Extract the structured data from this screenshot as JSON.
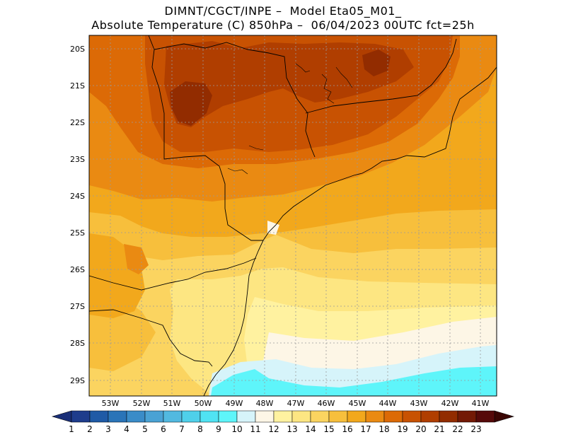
{
  "header": {
    "line1": "DIMNT/CGCT/INPE –  Model Eta05_M01_",
    "line2": "Absolute Temperature (C) 850hPa –  06/04/2023 00UTC fct=25h"
  },
  "axes": {
    "lat_labels": [
      "20S",
      "21S",
      "22S",
      "23S",
      "24S",
      "25S",
      "26S",
      "27S",
      "28S",
      "29S"
    ],
    "lon_labels": [
      "53W",
      "52W",
      "51W",
      "50W",
      "49W",
      "48W",
      "47W",
      "46W",
      "45W",
      "44W",
      "43W",
      "42W",
      "41W"
    ]
  },
  "colorbar": {
    "labels": [
      "1",
      "2",
      "3",
      "4",
      "5",
      "6",
      "7",
      "8",
      "9",
      "10",
      "11",
      "12",
      "13",
      "14",
      "15",
      "16",
      "17",
      "18",
      "19",
      "20",
      "21",
      "22",
      "23"
    ],
    "colors": [
      "#1e3c8c",
      "#1f5aa6",
      "#2a74b8",
      "#3a8cc8",
      "#4aa2d4",
      "#52b9e0",
      "#4fd0ea",
      "#50e3f3",
      "#5ef5fa",
      "#d6f4fa",
      "#fdf6e6",
      "#fff2a0",
      "#fde682",
      "#fbd460",
      "#f7bf3c",
      "#f2a81c",
      "#ea8a12",
      "#dc6a06",
      "#c85202",
      "#b03e00",
      "#922c00",
      "#731a06",
      "#560a0a"
    ],
    "left_arrow_color": "#1a2f78",
    "right_arrow_color": "#3a0604"
  },
  "map_colors": {
    "t20": "#b03e00",
    "t19": "#c85202",
    "t18": "#dc6a06",
    "t17": "#ea8a12",
    "t16": "#f2a81c",
    "t15": "#f7bf3c",
    "t14": "#fbd460",
    "t13": "#fde682",
    "t12": "#fff2a0",
    "t11": "#fdf6e6",
    "t10": "#d6f4fa",
    "t09": "#5ef5fa",
    "t21": "#922c00"
  }
}
